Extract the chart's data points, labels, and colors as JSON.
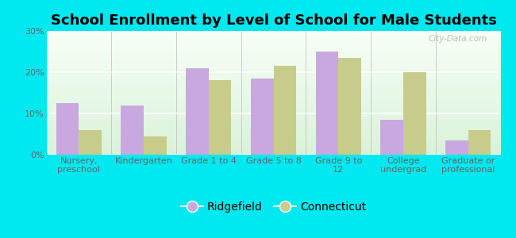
{
  "title": "School Enrollment by Level of School for Male Students",
  "categories": [
    "Nursery,\npreschool",
    "Kindergarten",
    "Grade 1 to 4",
    "Grade 5 to 8",
    "Grade 9 to\n12",
    "College\nundergrad",
    "Graduate or\nprofessional"
  ],
  "ridgefield": [
    12.5,
    12.0,
    21.0,
    18.5,
    25.0,
    8.5,
    3.5
  ],
  "connecticut": [
    6.0,
    4.5,
    18.0,
    21.5,
    23.5,
    20.0,
    6.0
  ],
  "ridgefield_color": "#c9a8e0",
  "connecticut_color": "#c8cc8a",
  "background_color": "#00e8f0",
  "ytick_vals": [
    0,
    10,
    20,
    30
  ],
  "ylim": [
    0,
    30
  ],
  "bar_width": 0.35,
  "legend_labels": [
    "Ridgefield",
    "Connecticut"
  ],
  "title_fontsize": 13,
  "tick_fontsize": 8,
  "legend_fontsize": 10,
  "watermark": "City-Data.com"
}
